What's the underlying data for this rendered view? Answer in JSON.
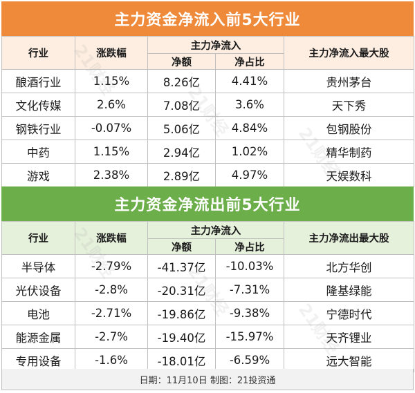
{
  "inflow": {
    "title": "主力资金净流入前5大行业",
    "headers": {
      "industry": "行业",
      "change": "涨跌幅",
      "main_net": "主力净流入",
      "amount": "净额",
      "ratio": "净占比",
      "top_stock": "主力净流入最大股"
    },
    "rows": [
      {
        "industry": "酿酒行业",
        "change": "1.15%",
        "amount": "8.26亿",
        "ratio": "4.41%",
        "top_stock": "贵州茅台"
      },
      {
        "industry": "文化传媒",
        "change": "2.6%",
        "amount": "7.08亿",
        "ratio": "3.6%",
        "top_stock": "天下秀"
      },
      {
        "industry": "钢铁行业",
        "change": "-0.07%",
        "amount": "5.06亿",
        "ratio": "4.84%",
        "top_stock": "包钢股份"
      },
      {
        "industry": "中药",
        "change": "1.15%",
        "amount": "2.94亿",
        "ratio": "1.02%",
        "top_stock": "精华制药"
      },
      {
        "industry": "游戏",
        "change": "2.38%",
        "amount": "2.89亿",
        "ratio": "4.97%",
        "top_stock": "天娱数科"
      }
    ]
  },
  "outflow": {
    "title": "主力资金净流出前5大行业",
    "headers": {
      "industry": "行业",
      "change": "涨跌幅",
      "main_net": "主力净流入",
      "amount": "净额",
      "ratio": "净占比",
      "top_stock": "主力净流出最大股"
    },
    "rows": [
      {
        "industry": "半导体",
        "change": "-2.79%",
        "amount": "-41.37亿",
        "ratio": "-10.03%",
        "top_stock": "北方华创"
      },
      {
        "industry": "光伏设备",
        "change": "-2.8%",
        "amount": "-20.31亿",
        "ratio": "-7.31%",
        "top_stock": "隆基绿能"
      },
      {
        "industry": "电池",
        "change": "-2.71%",
        "amount": "-19.86亿",
        "ratio": "-9.38%",
        "top_stock": "宁德时代"
      },
      {
        "industry": "能源金属",
        "change": "-2.7%",
        "amount": "-19.40亿",
        "ratio": "-15.97%",
        "top_stock": "天齐锂业"
      },
      {
        "industry": "专用设备",
        "change": "-1.6%",
        "amount": "-18.01亿",
        "ratio": "-6.59%",
        "top_stock": "远大智能"
      }
    ]
  },
  "footer": "日期：11月10日 制图：21投资通",
  "watermark": "21财经",
  "colors": {
    "inflow_title_bg": "#ef8a3a",
    "inflow_header_bg": "#fdeee1",
    "outflow_title_bg": "#6cae4a",
    "outflow_header_bg": "#e6f1dc"
  }
}
